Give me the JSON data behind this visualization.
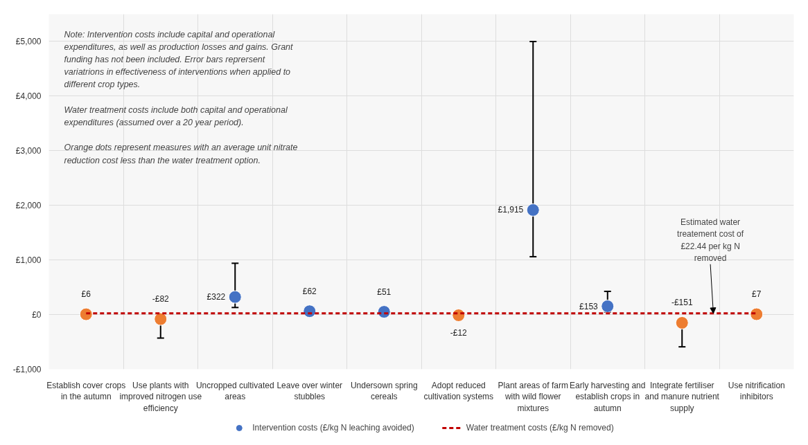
{
  "chart_data": {
    "type": "scatter",
    "categories": [
      "Establish cover crops in the autumn",
      "Use plants with improved nitrogen use efficiency",
      "Uncropped cultivated areas",
      "Leave over winter stubbles",
      "Undersown spring cereals",
      "Adopt reduced cultivation systems",
      "Plant areas of farm with wild flower mixtures",
      "Early harvesting and establish crops in autumn",
      "Integrate fertiliser and manure nutrient supply",
      "Use nitrification inhibitors"
    ],
    "series": [
      {
        "name": "Intervention costs (£/kg N leaching avoided)",
        "type": "scatter",
        "color": "#4472c4",
        "colors": [
          "#ed7d31",
          "#ed7d31",
          "#4472c4",
          "#4472c4",
          "#4472c4",
          "#ed7d31",
          "#4472c4",
          "#4472c4",
          "#ed7d31",
          "#ed7d31"
        ],
        "values": [
          6,
          -82,
          322,
          62,
          51,
          -12,
          1915,
          153,
          -151,
          7
        ],
        "errors": [
          null,
          [
            -430,
            -82
          ],
          [
            130,
            940
          ],
          null,
          null,
          null,
          [
            1060,
            5000
          ],
          [
            50,
            425
          ],
          [
            -590,
            -151
          ],
          null
        ],
        "value_labels": [
          "£6",
          "-£82",
          "£322",
          "£62",
          "£51",
          "-£12",
          "£1,915",
          "£153",
          "-£151",
          "£7"
        ]
      },
      {
        "name": "Water treatment costs (£/kg N removed)",
        "type": "line",
        "color": "#c00000",
        "line_style": "dashed",
        "marker": "none",
        "values": [
          22.44,
          22.44,
          22.44,
          22.44,
          22.44,
          22.44,
          22.44,
          22.44,
          22.44,
          22.44
        ]
      }
    ],
    "ylim": [
      -1000,
      5500
    ],
    "yticks": [
      {
        "value": -1000,
        "label": "-£1,000"
      },
      {
        "value": 0,
        "label": "£0"
      },
      {
        "value": 1000,
        "label": "£1,000"
      },
      {
        "value": 2000,
        "label": "£2,000"
      },
      {
        "value": 3000,
        "label": "£3,000"
      },
      {
        "value": 4000,
        "label": "£4,000"
      },
      {
        "value": 5000,
        "label": "£5,000"
      }
    ],
    "grid": true,
    "legend": "bottom",
    "marker": "circle",
    "annotations": [
      "Note: Intervention costs include capital and operational expenditures, as well as production losses and gains. Grant funding has not been included. Error bars reprersent variatrions in effectiveness of interventions when applied to different crop types.",
      "Water treatment costs include both capital and operational expenditures (assumed over a 20 year period).",
      "Orange dots represent measures with an average unit nitrate reduction cost less than the water treatment option.",
      {
        "text": "Estimated water treatement cost of £22.44 per kg N removed",
        "y": 22.44
      }
    ]
  }
}
